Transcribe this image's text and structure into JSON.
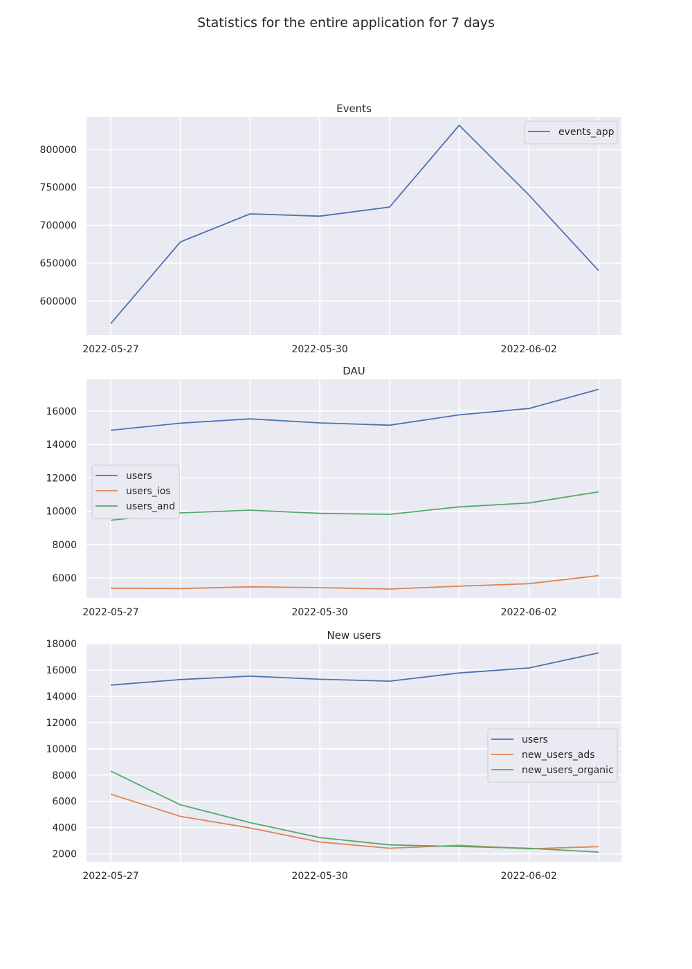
{
  "figure": {
    "title": "Statistics for the entire application for 7 days"
  },
  "chart_data": [
    {
      "type": "line",
      "title": "Events",
      "x": [
        "2022-05-27",
        "2022-05-28",
        "2022-05-29",
        "2022-05-30",
        "2022-05-31",
        "2022-06-01",
        "2022-06-02",
        "2022-06-03"
      ],
      "xticks": [
        "2022-05-27",
        "2022-05-30",
        "2022-06-02"
      ],
      "yticks": [
        600000,
        650000,
        700000,
        750000,
        800000
      ],
      "ylim": [
        555000,
        843000
      ],
      "series": [
        {
          "name": "events_app",
          "color": "#4c72b0",
          "values": [
            570000,
            678000,
            715000,
            712000,
            724000,
            832000,
            740000,
            640000
          ]
        }
      ],
      "legend": "upper right",
      "grid": true
    },
    {
      "type": "line",
      "title": "DAU",
      "x": [
        "2022-05-27",
        "2022-05-28",
        "2022-05-29",
        "2022-05-30",
        "2022-05-31",
        "2022-06-01",
        "2022-06-02",
        "2022-06-03"
      ],
      "xticks": [
        "2022-05-27",
        "2022-05-30",
        "2022-06-02"
      ],
      "yticks": [
        6000,
        8000,
        10000,
        12000,
        14000,
        16000
      ],
      "ylim": [
        4800,
        17900
      ],
      "series": [
        {
          "name": "users",
          "color": "#4c72b0",
          "values": [
            14850,
            15270,
            15530,
            15290,
            15150,
            15770,
            16150,
            17300
          ]
        },
        {
          "name": "users_ios",
          "color": "#dd8452",
          "values": [
            5390,
            5370,
            5470,
            5420,
            5340,
            5510,
            5660,
            6140
          ]
        },
        {
          "name": "users_and",
          "color": "#55a868",
          "values": [
            9460,
            9900,
            10060,
            9870,
            9810,
            10260,
            10490,
            11160
          ]
        }
      ],
      "legend": "center left",
      "grid": true
    },
    {
      "type": "line",
      "title": "New users",
      "x": [
        "2022-05-27",
        "2022-05-28",
        "2022-05-29",
        "2022-05-30",
        "2022-05-31",
        "2022-06-01",
        "2022-06-02",
        "2022-06-03"
      ],
      "xticks": [
        "2022-05-27",
        "2022-05-30",
        "2022-06-02"
      ],
      "yticks": [
        2000,
        4000,
        6000,
        8000,
        10000,
        12000,
        14000,
        16000,
        18000
      ],
      "ylim": [
        1400,
        18000
      ],
      "series": [
        {
          "name": "users",
          "color": "#4c72b0",
          "values": [
            14850,
            15270,
            15530,
            15290,
            15150,
            15770,
            16150,
            17300
          ]
        },
        {
          "name": "new_users_ads",
          "color": "#dd8452",
          "values": [
            6550,
            4850,
            3970,
            2900,
            2430,
            2650,
            2380,
            2550
          ]
        },
        {
          "name": "new_users_organic",
          "color": "#55a868",
          "values": [
            8300,
            5730,
            4380,
            3240,
            2680,
            2560,
            2420,
            2130
          ]
        }
      ],
      "legend": "center right",
      "grid": true
    }
  ]
}
